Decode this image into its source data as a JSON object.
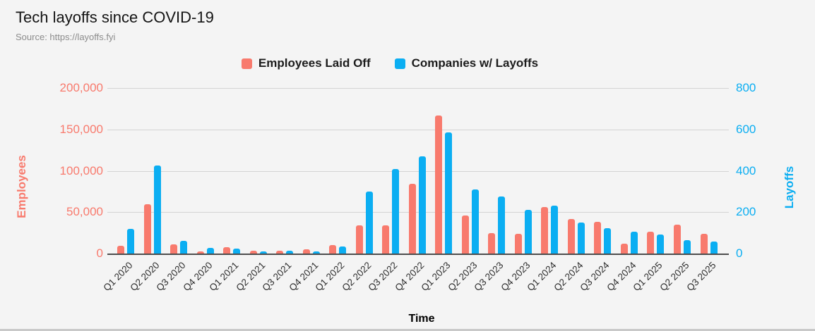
{
  "header": {
    "title": "Tech layoffs since COVID-19",
    "source": "Source: https://layoffs.fyi"
  },
  "legend": [
    {
      "label": "Employees Laid Off",
      "color": "#f87a6d"
    },
    {
      "label": "Companies w/ Layoffs",
      "color": "#0baef2"
    }
  ],
  "colors": {
    "background": "#f4f4f4",
    "gridline": "#d4d4d4",
    "baseline": "#4d4d4d",
    "employees_series": "#f87a6d",
    "companies_series": "#0baef2"
  },
  "chart_data": {
    "type": "bar",
    "title": "Tech layoffs since COVID-19",
    "xlabel": "Time",
    "grid": true,
    "legend_position": "top",
    "categories": [
      "Q1 2020",
      "Q2 2020",
      "Q3 2020",
      "Q4 2020",
      "Q1 2021",
      "Q2 2021",
      "Q3 2021",
      "Q4 2021",
      "Q1 2022",
      "Q2 2022",
      "Q3 2022",
      "Q4 2022",
      "Q1 2023",
      "Q2 2023",
      "Q3 2023",
      "Q4 2023",
      "Q1 2024",
      "Q2 2024",
      "Q3 2024",
      "Q4 2024",
      "Q1 2025",
      "Q2 2025",
      "Q3 2025"
    ],
    "series": [
      {
        "name": "Employees Laid Off",
        "axis": "left",
        "color": "#f87a6d",
        "values": [
          9600,
          60000,
          11400,
          2500,
          8000,
          3400,
          3800,
          4700,
          10200,
          34000,
          34000,
          84000,
          167000,
          46000,
          24500,
          24000,
          56500,
          42000,
          38500,
          12000,
          26500,
          35000,
          24000
        ]
      },
      {
        "name": "Companies w/ Layoffs",
        "axis": "right",
        "color": "#0baef2",
        "values": [
          120,
          425,
          60,
          28,
          25,
          9,
          15,
          10,
          34,
          300,
          410,
          470,
          585,
          310,
          275,
          210,
          233,
          150,
          123,
          106,
          92,
          65,
          58
        ]
      }
    ],
    "left_axis": {
      "label": "Employees",
      "color": "#f87a6d",
      "min": 0,
      "max": 200000,
      "ticks": [
        "200,000",
        "150,000",
        "100,000",
        "50,000",
        "0"
      ]
    },
    "right_axis": {
      "label": "Layoffs",
      "color": "#0baef2",
      "min": 0,
      "max": 800,
      "ticks": [
        "800",
        "600",
        "400",
        "200",
        "0"
      ]
    }
  }
}
